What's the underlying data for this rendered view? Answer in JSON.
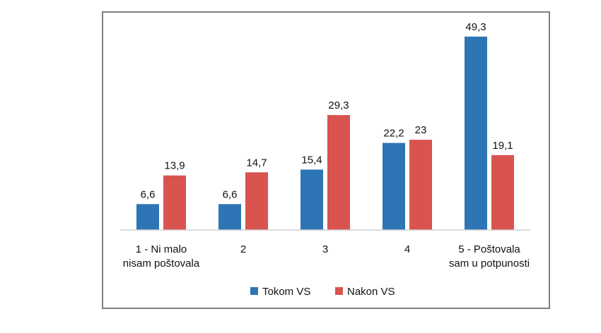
{
  "chart_data": {
    "type": "bar",
    "categories": [
      [
        "1 - Ni malo",
        "nisam poštovala"
      ],
      [
        "2"
      ],
      [
        "3"
      ],
      [
        "4"
      ],
      [
        "5 - Poštovala",
        "sam u potpunosti"
      ]
    ],
    "series": [
      {
        "name": "Tokom VS",
        "color": "#2e75b6",
        "values": [
          6.6,
          6.6,
          15.4,
          22.2,
          49.3
        ],
        "labels": [
          "6,6",
          "6,6",
          "15,4",
          "22,2",
          "49,3"
        ]
      },
      {
        "name": "Nakon VS",
        "color": "#d9534f",
        "values": [
          13.9,
          14.7,
          29.3,
          23,
          19.1
        ],
        "labels": [
          "13,9",
          "14,7",
          "29,3",
          "23",
          "19,1"
        ]
      }
    ],
    "ylim": [
      0,
      50
    ],
    "grid": false,
    "legend_position": "bottom"
  }
}
